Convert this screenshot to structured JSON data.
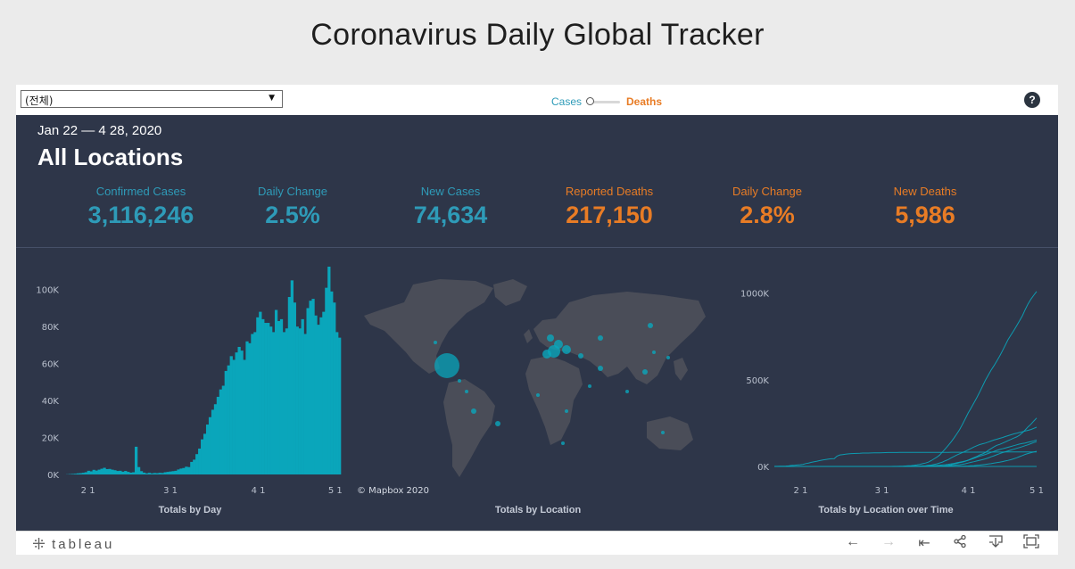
{
  "page": {
    "title": "Coronavirus Daily Global Tracker"
  },
  "filter": {
    "value": "(전체)",
    "caret": "▼"
  },
  "toggle": {
    "cases": "Cases",
    "deaths": "Deaths"
  },
  "help": {
    "label": "?"
  },
  "header": {
    "date_range": "Jan 22 — 4 28, 2020",
    "location": "All Locations"
  },
  "kpis": [
    {
      "label": "Confirmed Cases",
      "value": "3,116,246",
      "color": "#2e9bb8"
    },
    {
      "label": "Daily Change",
      "value": "2.5%",
      "color": "#2e9bb8"
    },
    {
      "label": "New Cases",
      "value": "74,634",
      "color": "#2e9bb8"
    },
    {
      "label": "Reported Deaths",
      "value": "217,150",
      "color": "#e87c25"
    },
    {
      "label": "Daily Change",
      "value": "2.8%",
      "color": "#e87c25"
    },
    {
      "label": "New Deaths",
      "value": "5,986",
      "color": "#e87c25"
    }
  ],
  "panels": {
    "by_day": "Totals by Day",
    "by_location": "Totals by Location",
    "over_time": "Totals by Location over Time",
    "map_credit": "© Mapbox 2020"
  },
  "chart_data": [
    {
      "type": "bar",
      "ylim": [
        0,
        110000
      ],
      "yticks": [
        "100K",
        "80K",
        "60K",
        "40K",
        "20K",
        "0K"
      ],
      "ytick_values": [
        100000,
        80000,
        60000,
        40000,
        20000,
        0
      ],
      "xticks": [
        "2 1",
        "3 1",
        "4 1",
        "5 1"
      ],
      "color": "#0aa6bb",
      "values": [
        100,
        200,
        300,
        400,
        600,
        700,
        900,
        1200,
        2000,
        1700,
        2500,
        2100,
        2600,
        3100,
        3600,
        2900,
        3000,
        2600,
        2300,
        1900,
        2000,
        1500,
        1900,
        1400,
        1000,
        1200,
        15000,
        4000,
        1800,
        1000,
        600,
        900,
        600,
        800,
        700,
        900,
        800,
        1200,
        1400,
        1600,
        1800,
        2000,
        2700,
        3200,
        3500,
        4200,
        4000,
        6800,
        8000,
        11000,
        14000,
        19000,
        22000,
        27000,
        31000,
        35000,
        38000,
        42000,
        46000,
        48000,
        56000,
        59000,
        64000,
        62000,
        66000,
        69000,
        67000,
        62000,
        72000,
        71000,
        76000,
        77000,
        85000,
        88000,
        84000,
        82000,
        82000,
        80000,
        77000,
        89000,
        83000,
        84000,
        77000,
        79000,
        96000,
        105000,
        93000,
        80000,
        79000,
        84000,
        76000,
        90000,
        94000,
        95000,
        86000,
        81000,
        85000,
        88000,
        101000,
        113000,
        99000,
        93000,
        77000,
        74000
      ]
    },
    {
      "type": "line",
      "ylim": [
        0,
        1050000
      ],
      "yticks": [
        "1000K",
        "500K",
        "0K"
      ],
      "ytick_values": [
        1000000,
        500000,
        0
      ],
      "xticks": [
        "2 1",
        "3 1",
        "4 1",
        "5 1"
      ],
      "color": "#0aa6bb",
      "series": [
        {
          "values": [
            0,
            0,
            0,
            0,
            0,
            0,
            0,
            0,
            0,
            0,
            0,
            0,
            0,
            0,
            0,
            0,
            0,
            0,
            0,
            0,
            0,
            0,
            0,
            0,
            0,
            0,
            0,
            0,
            0,
            0,
            0,
            0,
            0,
            0,
            0,
            0,
            0,
            0,
            0,
            0,
            0,
            100,
            300,
            600,
            1000,
            1700,
            2600,
            3500,
            4700,
            6400,
            8600,
            11700,
            15700,
            19600,
            24500,
            33200,
            43900,
            53700,
            65800,
            83800,
            101700,
            121500,
            140900,
            163500,
            188100,
            213300,
            243500,
            275800,
            308800,
            337000,
            366700,
            396200,
            429000,
            462900,
            496500,
            526400,
            555300,
            580600,
            607700,
            636400,
            667800,
            699700,
            732200,
            758800,
            784300,
            811900,
            840400,
            869200,
            905300,
            938100,
            965800,
            988200,
            1010000
          ]
        },
        {
          "values": [
            0,
            0,
            0,
            0,
            0,
            0,
            0,
            0,
            0,
            0,
            0,
            0,
            0,
            0,
            0,
            0,
            0,
            0,
            0,
            0,
            0,
            0,
            0,
            0,
            0,
            0,
            0,
            0,
            0,
            0,
            0,
            0,
            0,
            0,
            0,
            0,
            0,
            0,
            0,
            0,
            0,
            0,
            0,
            0,
            0,
            100,
            200,
            400,
            800,
            1200,
            1700,
            2200,
            3100,
            4200,
            6000,
            7800,
            11200,
            14700,
            19900,
            25400,
            33100,
            39700,
            49500,
            57800,
            65700,
            73200,
            80100,
            87900,
            95900,
            104100,
            112100,
            119200,
            126200,
            130800,
            135000,
            140500,
            146700,
            152400,
            157000,
            161900,
            166800,
            172500,
            177600,
            182800,
            188000,
            191700,
            195900,
            200200,
            204200,
            208400,
            213000,
            219800,
            226600
          ]
        },
        {
          "values": [
            0,
            0,
            0,
            0,
            0,
            0,
            0,
            0,
            0,
            0,
            0,
            0,
            0,
            0,
            0,
            0,
            0,
            0,
            0,
            0,
            0,
            0,
            0,
            0,
            0,
            0,
            0,
            0,
            0,
            0,
            0,
            0,
            0,
            0,
            0,
            0,
            0,
            0,
            0,
            0,
            0,
            3,
            20,
            79,
            150,
            227,
            320,
            445,
            650,
            888,
            1128,
            1694,
            2036,
            2502,
            3089,
            3858,
            4636,
            5883,
            7375,
            9172,
            10149,
            12462,
            15113,
            17660,
            21157,
            24747,
            27980,
            31506,
            35713,
            41035,
            47021,
            53578,
            59138,
            63927,
            69176,
            74386,
            80589,
            86498,
            92472,
            97689,
            101739,
            105792,
            110574,
            115242,
            119827,
            124632,
            128948,
            132547,
            135586,
            139422,
            143626,
            147577,
            152271
          ]
        },
        {
          "values": [
            0,
            0,
            0,
            0,
            0,
            0,
            0,
            0,
            0,
            0,
            0,
            0,
            0,
            0,
            0,
            0,
            0,
            0,
            0,
            0,
            0,
            0,
            0,
            0,
            0,
            0,
            0,
            0,
            0,
            0,
            0,
            0,
            0,
            0,
            0,
            0,
            0,
            0,
            0,
            0,
            0,
            0,
            0,
            0,
            0,
            0,
            0,
            0,
            0,
            0,
            1,
            16,
            30,
            100,
            300,
            600,
            900,
            1300,
            1900,
            2600,
            3300,
            4000,
            5000,
            6500,
            8000,
            10000,
            12500,
            15600,
            19700,
            23800,
            27400,
            31400,
            35600,
            39300,
            43600,
            49000,
            55400,
            61100,
            67300,
            73600,
            79600,
            84600,
            89500,
            94800,
            99500,
            104500,
            109300,
            114400,
            119800,
            125300,
            131800,
            137900,
            143700
          ]
        },
        {
          "values": [
            0,
            0,
            0,
            0,
            0,
            0,
            0,
            0,
            0,
            0,
            0,
            0,
            0,
            0,
            0,
            0,
            0,
            0,
            0,
            0,
            0,
            0,
            0,
            0,
            0,
            0,
            0,
            0,
            0,
            0,
            0,
            0,
            0,
            0,
            0,
            0,
            0,
            0,
            0,
            0,
            0,
            0,
            0,
            0,
            0,
            0,
            2,
            7,
            10,
            20,
            40,
            90,
            130,
            190,
            280,
            400,
            650,
            1000,
            1400,
            2300,
            4100,
            6100,
            9600,
            14500,
            17500,
            21700,
            25000,
            29900,
            36500,
            44000,
            50700,
            57000,
            66500,
            72300,
            80100,
            92000,
            102200,
            112500,
            122000,
            127200,
            134400,
            141200,
            149000,
            155700,
            163800,
            170600,
            180000,
            194000,
            210400,
            228300,
            243200,
            261900,
            279300
          ]
        },
        {
          "values": [
            0,
            0,
            0,
            0,
            0,
            0,
            0,
            0,
            0,
            0,
            0,
            0,
            0,
            0,
            0,
            0,
            0,
            0,
            0,
            0,
            0,
            0,
            0,
            0,
            0,
            0,
            0,
            0,
            0,
            0,
            0,
            0,
            0,
            0,
            0,
            0,
            0,
            0,
            0,
            0,
            0,
            0,
            0,
            0,
            0,
            0,
            0,
            0,
            0,
            0,
            0,
            0,
            0,
            0,
            0,
            0,
            0,
            0,
            0,
            10,
            70,
            150,
            270,
            410,
            600,
            900,
            1300,
            1900,
            2600,
            3600,
            4800,
            6300,
            7900,
            9600,
            11600,
            13700,
            16200,
            19000,
            21400,
            24300,
            27700,
            31200,
            35000,
            39000,
            44500,
            50000,
            56700,
            62700,
            69600,
            74600,
            79100,
            83300,
            87300
          ]
        },
        {
          "values": [
            0,
            0,
            0,
            0,
            0,
            0,
            0,
            0,
            0,
            0,
            0,
            0,
            0,
            0,
            0,
            0,
            0,
            0,
            0,
            0,
            0,
            0,
            0,
            0,
            0,
            0,
            0,
            0,
            0,
            0,
            0,
            0,
            0,
            0,
            0,
            0,
            0,
            0,
            0,
            0,
            0,
            0,
            0,
            0,
            0,
            0,
            0,
            0,
            0,
            0,
            0,
            0,
            0,
            0,
            0,
            0,
            0,
            0,
            0,
            0,
            0,
            0,
            0,
            0,
            0,
            0,
            0,
            0,
            0,
            0,
            0,
            0,
            0,
            0,
            0,
            0,
            0,
            0,
            0,
            0,
            0,
            0,
            0,
            0,
            0,
            0,
            0,
            0,
            0,
            0,
            0,
            0,
            0
          ]
        },
        {
          "values": [
            548,
            643,
            920,
            1406,
            2075,
            2877,
            5509,
            6087,
            8141,
            9802,
            11891,
            16630,
            19716,
            23707,
            27440,
            30587,
            34110,
            36814,
            39829,
            42354,
            44386,
            44759,
            59895,
            66358,
            68413,
            70513,
            72434,
            74211,
            74619,
            75077,
            75550,
            77001,
            77022,
            77241,
            77754,
            78166,
            78600,
            78928,
            79356,
            79932,
            80136,
            80261,
            80386,
            80537,
            80690,
            80770,
            80823,
            80860,
            80887,
            80921,
            80932,
            80945,
            80977,
            81003,
            81033,
            81058,
            81102,
            81156,
            81250,
            81305,
            81435,
            81498,
            81591,
            81661,
            81782,
            81897,
            81999,
            82122,
            82198,
            82279,
            82361,
            82432,
            82511,
            82543,
            82602,
            82665,
            82718,
            82809,
            82883,
            82941,
            83014,
            83134,
            83213,
            83306,
            83403,
            83760,
            83787,
            83805,
            83817,
            83853,
            83868,
            83884,
            83899
          ]
        }
      ]
    }
  ],
  "footer": {
    "brand": "tableau",
    "tools": [
      "←",
      "→",
      "⇤",
      "share-icon",
      "download-icon",
      "fullscreen-icon"
    ]
  }
}
